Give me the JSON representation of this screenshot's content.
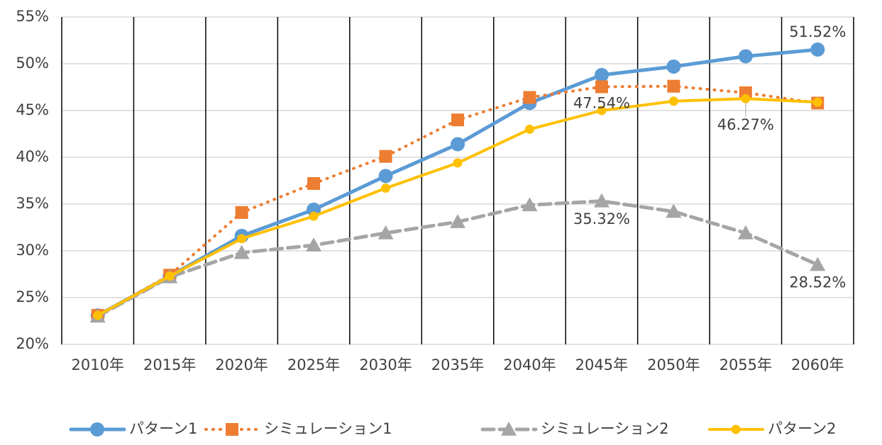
{
  "chart_data": {
    "type": "line",
    "categories": [
      "2010年",
      "2015年",
      "2020年",
      "2025年",
      "2030年",
      "2035年",
      "2040年",
      "2045年",
      "2050年",
      "2055年",
      "2060年"
    ],
    "series": [
      {
        "name": "パターン1",
        "color": "#5b9bd5",
        "values": [
          23.1,
          27.3,
          31.6,
          34.4,
          38.0,
          41.4,
          45.8,
          48.8,
          49.7,
          50.8,
          51.52
        ],
        "value_labels": [
          null,
          null,
          null,
          null,
          null,
          null,
          null,
          null,
          null,
          null,
          "51.52%"
        ]
      },
      {
        "name": "シミュレーション1",
        "color": "#ed7d31",
        "values": [
          23.1,
          27.4,
          34.1,
          37.2,
          40.1,
          44.0,
          46.4,
          47.54,
          47.6,
          46.9,
          45.8
        ],
        "value_labels": [
          null,
          null,
          null,
          null,
          null,
          null,
          null,
          "47.54%",
          null,
          null,
          null
        ]
      },
      {
        "name": "シミュレーション2",
        "color": "#a5a5a5",
        "values": [
          23.0,
          27.2,
          29.8,
          30.6,
          31.9,
          33.1,
          34.9,
          35.32,
          34.2,
          31.9,
          28.52
        ],
        "value_labels": [
          null,
          null,
          null,
          null,
          null,
          null,
          null,
          "35.32%",
          null,
          null,
          "28.52%"
        ]
      },
      {
        "name": "パターン2",
        "color": "#ffc000",
        "values": [
          23.1,
          27.3,
          31.3,
          33.7,
          36.7,
          39.4,
          43.0,
          45.0,
          46.0,
          46.27,
          45.9
        ],
        "value_labels": [
          null,
          null,
          null,
          null,
          null,
          null,
          null,
          null,
          null,
          "46.27%",
          null
        ]
      }
    ],
    "ylim": [
      20,
      55
    ],
    "yticks": [
      {
        "value": 20,
        "label": "20%"
      },
      {
        "value": 25,
        "label": "25%"
      },
      {
        "value": 30,
        "label": "30%"
      },
      {
        "value": 35,
        "label": "35%"
      },
      {
        "value": 40,
        "label": "40%"
      },
      {
        "value": 45,
        "label": "45%"
      },
      {
        "value": 50,
        "label": "50%"
      },
      {
        "value": 55,
        "label": "55%"
      }
    ],
    "grid": true,
    "legend": "bottom"
  }
}
